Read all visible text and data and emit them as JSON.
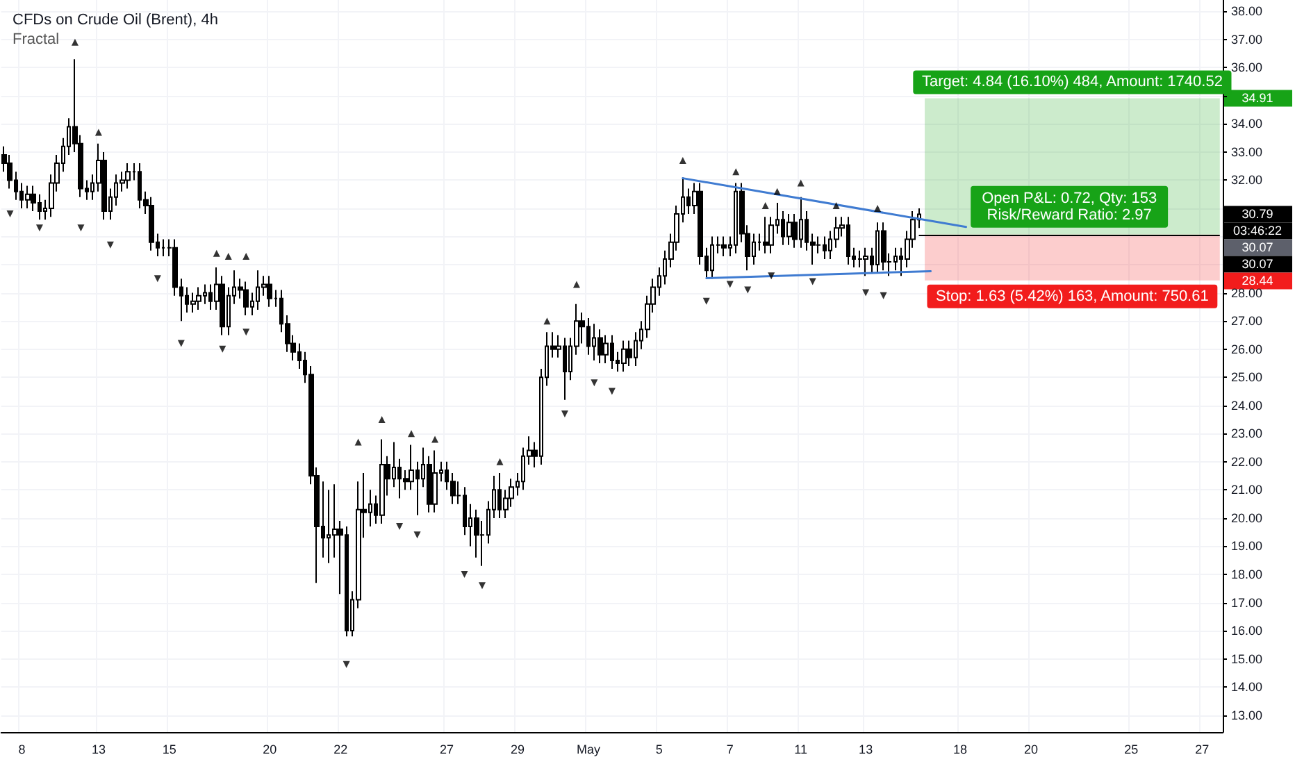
{
  "chart_data": {
    "type": "candlestick",
    "title": "CFDs on Crude Oil (Brent), 4h",
    "subtitle": "Fractal",
    "color": "#000000",
    "grid": true,
    "categories": [
      null,
      null,
      null,
      "8",
      null,
      null,
      null,
      null,
      null,
      null,
      null,
      null,
      null,
      null,
      null,
      null,
      "13",
      null,
      null,
      null,
      null,
      null,
      null,
      null,
      null,
      null,
      null,
      null,
      "15",
      null,
      null,
      null,
      null,
      null,
      null,
      null,
      null,
      null,
      null,
      null,
      null,
      null,
      null,
      null,
      null,
      "20",
      null,
      null,
      null,
      null,
      null,
      null,
      null,
      null,
      null,
      null,
      null,
      "22",
      null,
      null,
      null,
      null,
      null,
      null,
      null,
      null,
      null,
      null,
      null,
      null,
      null,
      null,
      null,
      null,
      null,
      "27",
      null,
      null,
      null,
      null,
      null,
      null,
      null,
      null,
      null,
      null,
      null,
      "29",
      null,
      null,
      null,
      null,
      null,
      null,
      null,
      null,
      null,
      null,
      null,
      "May",
      null,
      null,
      null,
      null,
      null,
      null,
      null,
      null,
      null,
      null,
      null,
      "5",
      null,
      null,
      null,
      null,
      null,
      null,
      null,
      null,
      null,
      null,
      null,
      "7",
      null,
      null,
      null,
      null,
      null,
      null,
      null,
      null,
      null,
      null,
      null,
      "11",
      null,
      null,
      null,
      null,
      null,
      null,
      null,
      null,
      null,
      null,
      "13",
      null,
      null,
      null,
      null,
      null,
      null,
      null,
      null,
      null,
      null,
      null,
      null,
      null,
      null,
      null,
      "18",
      null,
      null,
      null,
      null,
      null,
      null,
      null,
      null,
      null,
      null,
      null,
      "20",
      null,
      null,
      null,
      null,
      null,
      null,
      null,
      null,
      null,
      null,
      null,
      null,
      null,
      null,
      null,
      null,
      "25",
      null,
      null,
      null,
      null,
      null,
      null,
      null,
      null,
      null,
      null,
      null,
      "27",
      null,
      null,
      null
    ],
    "ohlc": [
      [
        32.9,
        33.2,
        32.3,
        32.6
      ],
      [
        32.6,
        32.9,
        31.7,
        32.0
      ],
      [
        32.0,
        32.3,
        31.3,
        31.6
      ],
      [
        31.6,
        31.9,
        31.0,
        31.3
      ],
      [
        31.3,
        31.8,
        31.0,
        31.5
      ],
      [
        31.5,
        31.8,
        30.9,
        31.2
      ],
      [
        31.2,
        31.5,
        30.6,
        30.9
      ],
      [
        30.9,
        31.3,
        30.6,
        31.0
      ],
      [
        31.0,
        32.2,
        30.7,
        31.9
      ],
      [
        31.9,
        32.9,
        31.6,
        32.6
      ],
      [
        32.6,
        33.5,
        32.3,
        33.2
      ],
      [
        33.2,
        34.2,
        32.9,
        33.9
      ],
      [
        33.9,
        36.3,
        33.0,
        33.3
      ],
      [
        33.3,
        33.6,
        31.4,
        31.7
      ],
      [
        31.7,
        32.0,
        31.3,
        31.6
      ],
      [
        31.6,
        32.2,
        31.3,
        31.9
      ],
      [
        31.9,
        33.3,
        31.6,
        32.7
      ],
      [
        32.7,
        33.0,
        30.6,
        30.9
      ],
      [
        30.9,
        31.7,
        30.6,
        31.4
      ],
      [
        31.4,
        32.2,
        31.1,
        31.9
      ],
      [
        31.9,
        32.3,
        31.6,
        32.0
      ],
      [
        32.0,
        32.6,
        31.7,
        32.3
      ],
      [
        32.3,
        32.6,
        32.0,
        32.3
      ],
      [
        32.3,
        32.6,
        31.0,
        31.3
      ],
      [
        31.3,
        31.6,
        30.8,
        31.1
      ],
      [
        31.1,
        31.4,
        29.5,
        29.8
      ],
      [
        29.8,
        30.1,
        29.3,
        29.6
      ],
      [
        29.6,
        29.9,
        29.3,
        29.6
      ],
      [
        29.6,
        29.9,
        29.3,
        29.6
      ],
      [
        29.6,
        29.9,
        27.9,
        28.2
      ],
      [
        28.2,
        28.5,
        27.0,
        27.9
      ],
      [
        27.9,
        28.2,
        27.3,
        27.6
      ],
      [
        27.6,
        28.0,
        27.3,
        27.7
      ],
      [
        27.7,
        28.2,
        27.4,
        27.9
      ],
      [
        27.9,
        28.3,
        27.6,
        28.0
      ],
      [
        28.0,
        28.3,
        27.4,
        27.7
      ],
      [
        27.7,
        28.9,
        27.4,
        28.3
      ],
      [
        28.3,
        28.6,
        26.5,
        26.8
      ],
      [
        26.8,
        28.2,
        26.5,
        27.9
      ],
      [
        27.9,
        28.8,
        27.6,
        28.2
      ],
      [
        28.2,
        28.5,
        27.8,
        28.1
      ],
      [
        28.1,
        28.4,
        27.2,
        27.5
      ],
      [
        27.5,
        28.0,
        27.2,
        27.7
      ],
      [
        27.7,
        28.8,
        27.4,
        28.2
      ],
      [
        28.2,
        28.6,
        27.9,
        28.3
      ],
      [
        28.3,
        28.6,
        27.5,
        27.8
      ],
      [
        27.8,
        28.1,
        27.5,
        27.8
      ],
      [
        27.8,
        28.1,
        26.6,
        26.9
      ],
      [
        26.9,
        27.2,
        25.9,
        26.2
      ],
      [
        26.2,
        26.5,
        25.6,
        25.9
      ],
      [
        25.9,
        26.2,
        25.3,
        25.6
      ],
      [
        25.6,
        25.9,
        24.8,
        25.1
      ],
      [
        25.1,
        25.4,
        21.2,
        21.5
      ],
      [
        21.5,
        21.8,
        17.7,
        19.7
      ],
      [
        19.7,
        21.3,
        18.6,
        19.3
      ],
      [
        19.3,
        21.0,
        18.4,
        19.4
      ],
      [
        19.4,
        21.2,
        18.6,
        19.6
      ],
      [
        19.6,
        19.9,
        17.3,
        19.4
      ],
      [
        19.4,
        19.7,
        15.8,
        16.0
      ],
      [
        16.0,
        17.4,
        15.8,
        17.1
      ],
      [
        17.1,
        21.3,
        16.8,
        20.3
      ],
      [
        20.3,
        21.6,
        19.3,
        20.2
      ],
      [
        20.2,
        21.0,
        19.7,
        20.5
      ],
      [
        20.5,
        20.8,
        19.8,
        20.1
      ],
      [
        20.1,
        22.8,
        19.8,
        21.9
      ],
      [
        21.9,
        22.2,
        20.8,
        21.4
      ],
      [
        21.4,
        22.7,
        21.1,
        21.8
      ],
      [
        21.8,
        22.1,
        20.7,
        21.4
      ],
      [
        21.4,
        21.7,
        21.0,
        21.3
      ],
      [
        21.3,
        22.6,
        21.0,
        21.7
      ],
      [
        21.7,
        22.0,
        20.1,
        21.4
      ],
      [
        21.4,
        22.5,
        21.1,
        21.9
      ],
      [
        21.9,
        22.2,
        20.2,
        20.5
      ],
      [
        20.5,
        22.4,
        20.2,
        21.6
      ],
      [
        21.6,
        22.0,
        21.3,
        21.7
      ],
      [
        21.7,
        22.0,
        21.0,
        21.3
      ],
      [
        21.3,
        21.6,
        20.5,
        20.8
      ],
      [
        20.8,
        21.3,
        20.5,
        20.8
      ],
      [
        20.8,
        21.1,
        19.4,
        19.7
      ],
      [
        19.7,
        20.5,
        19.0,
        20.0
      ],
      [
        20.0,
        20.3,
        18.6,
        19.4
      ],
      [
        19.4,
        19.9,
        18.3,
        19.4
      ],
      [
        19.4,
        20.6,
        19.1,
        20.3
      ],
      [
        20.3,
        21.5,
        20.0,
        21.0
      ],
      [
        21.0,
        21.6,
        20.0,
        20.3
      ],
      [
        20.3,
        21.0,
        20.0,
        20.7
      ],
      [
        20.7,
        21.4,
        20.4,
        21.1
      ],
      [
        21.1,
        21.6,
        20.8,
        21.3
      ],
      [
        21.3,
        22.5,
        21.0,
        22.2
      ],
      [
        22.2,
        22.9,
        21.9,
        22.4
      ],
      [
        22.4,
        22.7,
        21.8,
        22.2
      ],
      [
        22.2,
        25.3,
        21.9,
        25.0
      ],
      [
        25.0,
        26.6,
        24.7,
        26.1
      ],
      [
        26.1,
        26.6,
        25.7,
        26.0
      ],
      [
        26.0,
        26.5,
        25.7,
        26.1
      ],
      [
        26.1,
        26.4,
        24.2,
        25.2
      ],
      [
        25.2,
        26.4,
        24.9,
        26.1
      ],
      [
        26.1,
        27.6,
        25.8,
        27.0
      ],
      [
        27.0,
        27.3,
        26.2,
        26.8
      ],
      [
        26.8,
        27.1,
        25.8,
        26.1
      ],
      [
        26.1,
        26.9,
        25.6,
        26.4
      ],
      [
        26.4,
        26.7,
        25.5,
        25.8
      ],
      [
        25.8,
        26.5,
        25.5,
        26.2
      ],
      [
        26.2,
        26.5,
        25.3,
        25.6
      ],
      [
        25.6,
        25.9,
        25.2,
        25.5
      ],
      [
        25.5,
        26.3,
        25.2,
        26.0
      ],
      [
        26.0,
        26.3,
        25.4,
        25.7
      ],
      [
        25.7,
        26.6,
        25.4,
        26.3
      ],
      [
        26.3,
        27.0,
        26.0,
        26.7
      ],
      [
        26.7,
        27.9,
        26.4,
        27.6
      ],
      [
        27.6,
        28.5,
        27.3,
        28.2
      ],
      [
        28.2,
        28.9,
        27.9,
        28.6
      ],
      [
        28.6,
        29.5,
        28.3,
        29.2
      ],
      [
        29.2,
        30.1,
        28.9,
        29.8
      ],
      [
        29.8,
        31.1,
        29.5,
        30.8
      ],
      [
        30.8,
        32.1,
        30.5,
        31.4
      ],
      [
        31.4,
        31.7,
        30.8,
        31.1
      ],
      [
        31.1,
        31.9,
        30.8,
        31.6
      ],
      [
        31.6,
        31.9,
        29.0,
        29.3
      ],
      [
        29.3,
        29.6,
        28.5,
        28.8
      ],
      [
        28.8,
        30.0,
        28.5,
        29.7
      ],
      [
        29.7,
        30.0,
        29.4,
        29.7
      ],
      [
        29.7,
        30.0,
        29.3,
        29.6
      ],
      [
        29.6,
        30.0,
        29.3,
        29.7
      ],
      [
        29.7,
        31.9,
        29.4,
        31.6
      ],
      [
        31.6,
        31.9,
        29.8,
        30.1
      ],
      [
        30.1,
        30.4,
        28.8,
        29.3
      ],
      [
        29.3,
        30.1,
        29.0,
        29.8
      ],
      [
        29.8,
        30.1,
        29.5,
        29.8
      ],
      [
        29.8,
        30.7,
        29.4,
        29.7
      ],
      [
        29.7,
        30.7,
        29.4,
        30.4
      ],
      [
        30.4,
        31.2,
        30.1,
        30.6
      ],
      [
        30.6,
        30.9,
        29.7,
        30.0
      ],
      [
        30.0,
        30.8,
        29.7,
        30.5
      ],
      [
        30.5,
        30.8,
        29.6,
        29.9
      ],
      [
        29.9,
        31.4,
        29.6,
        30.6
      ],
      [
        30.6,
        30.9,
        29.5,
        29.8
      ],
      [
        29.8,
        30.1,
        29.0,
        29.7
      ],
      [
        29.7,
        30.0,
        29.4,
        29.7
      ],
      [
        29.7,
        30.0,
        29.2,
        29.5
      ],
      [
        29.5,
        30.2,
        29.2,
        29.9
      ],
      [
        29.9,
        30.7,
        29.6,
        30.3
      ],
      [
        30.3,
        30.7,
        30.0,
        30.4
      ],
      [
        30.4,
        30.7,
        29.0,
        29.3
      ],
      [
        29.3,
        29.6,
        28.9,
        29.2
      ],
      [
        29.2,
        29.5,
        28.9,
        29.2
      ],
      [
        29.2,
        29.6,
        28.6,
        29.3
      ],
      [
        29.3,
        29.6,
        28.7,
        29.0
      ],
      [
        29.0,
        30.5,
        28.7,
        30.2
      ],
      [
        30.2,
        30.5,
        28.8,
        29.1
      ],
      [
        29.1,
        29.4,
        28.6,
        29.1
      ],
      [
        29.1,
        29.6,
        28.8,
        29.3
      ],
      [
        29.3,
        29.6,
        28.6,
        29.2
      ],
      [
        29.2,
        30.2,
        28.9,
        29.9
      ],
      [
        29.9,
        30.9,
        29.6,
        30.6
      ],
      [
        30.6,
        31.0,
        30.3,
        30.79
      ],
      null,
      null,
      null,
      null,
      null,
      null,
      null,
      null,
      null,
      null,
      null,
      null,
      null,
      null,
      null,
      null,
      null,
      null,
      null,
      null,
      null,
      null,
      null,
      null,
      null,
      null,
      null,
      null,
      null,
      null,
      null,
      null,
      null,
      null,
      null,
      null,
      null,
      null,
      null,
      null,
      null,
      null,
      null,
      null,
      null,
      null,
      null,
      null,
      null,
      null,
      null
    ],
    "series": [
      {
        "type": "line",
        "color": "#3f7bd1",
        "marker": "none",
        "values": [
          null,
          null,
          null,
          null,
          null,
          null,
          null,
          null,
          null,
          null,
          null,
          null,
          null,
          null,
          null,
          null,
          null,
          null,
          null,
          null,
          null,
          null,
          null,
          null,
          null,
          null,
          null,
          null,
          null,
          null,
          null,
          null,
          null,
          null,
          null,
          null,
          null,
          null,
          null,
          null,
          null,
          null,
          null,
          null,
          null,
          null,
          null,
          null,
          null,
          null,
          null,
          null,
          null,
          null,
          null,
          null,
          null,
          null,
          null,
          null,
          null,
          null,
          null,
          null,
          null,
          null,
          null,
          null,
          null,
          null,
          null,
          null,
          null,
          null,
          null,
          null,
          null,
          null,
          null,
          null,
          null,
          null,
          null,
          null,
          null,
          null,
          null,
          null,
          null,
          null,
          null,
          null,
          null,
          null,
          null,
          null,
          null,
          null,
          null,
          null,
          null,
          null,
          null,
          null,
          null,
          null,
          null,
          null,
          null,
          null,
          null,
          null,
          null,
          null,
          null,
          32.07,
          null,
          null,
          null,
          null,
          null,
          null,
          null,
          null,
          null,
          null,
          null,
          null,
          null,
          null,
          null,
          null,
          null,
          null,
          null,
          null,
          null,
          null,
          null,
          null,
          null,
          null,
          null,
          null,
          null,
          null,
          null,
          null,
          null,
          null,
          null,
          null,
          null,
          null,
          null,
          null,
          null,
          null,
          null,
          null,
          null,
          null,
          null,
          30.34,
          null,
          null,
          null,
          null,
          null,
          null,
          null,
          null,
          null,
          null,
          null,
          null,
          null,
          null,
          null,
          null,
          null,
          null,
          null,
          null,
          null,
          null,
          null,
          null,
          null,
          null,
          null,
          null,
          null,
          null,
          null,
          null,
          null,
          null,
          null,
          null,
          null,
          null,
          null,
          null,
          null,
          null,
          null
        ]
      },
      {
        "type": "line",
        "color": "#3f7bd1",
        "marker": "none",
        "values": [
          null,
          null,
          null,
          null,
          null,
          null,
          null,
          null,
          null,
          null,
          null,
          null,
          null,
          null,
          null,
          null,
          null,
          null,
          null,
          null,
          null,
          null,
          null,
          null,
          null,
          null,
          null,
          null,
          null,
          null,
          null,
          null,
          null,
          null,
          null,
          null,
          null,
          null,
          null,
          null,
          null,
          null,
          null,
          null,
          null,
          null,
          null,
          null,
          null,
          null,
          null,
          null,
          null,
          null,
          null,
          null,
          null,
          null,
          null,
          null,
          null,
          null,
          null,
          null,
          null,
          null,
          null,
          null,
          null,
          null,
          null,
          null,
          null,
          null,
          null,
          null,
          null,
          null,
          null,
          null,
          null,
          null,
          null,
          null,
          null,
          null,
          null,
          null,
          null,
          null,
          null,
          null,
          null,
          null,
          null,
          null,
          null,
          null,
          null,
          null,
          null,
          null,
          null,
          null,
          null,
          null,
          null,
          null,
          null,
          null,
          null,
          null,
          null,
          null,
          null,
          null,
          null,
          null,
          null,
          28.52,
          null,
          null,
          null,
          null,
          null,
          null,
          null,
          null,
          null,
          null,
          null,
          null,
          null,
          null,
          null,
          null,
          null,
          null,
          null,
          null,
          null,
          null,
          null,
          null,
          null,
          null,
          null,
          null,
          null,
          null,
          null,
          null,
          null,
          null,
          null,
          null,
          null,
          28.77,
          null,
          null,
          null,
          null,
          null,
          null,
          null,
          null,
          null,
          null,
          null,
          null,
          null,
          null,
          null,
          null,
          null,
          null,
          null,
          null,
          null,
          null,
          null,
          null,
          null,
          null,
          null,
          null,
          null,
          null,
          null,
          null,
          null,
          null,
          null,
          null,
          null,
          null,
          null,
          null,
          null,
          null,
          null,
          null,
          null,
          null,
          null,
          null,
          null
        ]
      },
      {
        "type": "scatter",
        "color": "#000000",
        "marker": "triangle",
        "values": [
          null,
          null,
          null,
          null,
          null,
          null,
          null,
          null,
          null,
          null,
          null,
          null,
          36.9,
          null,
          null,
          null,
          33.7,
          null,
          null,
          null,
          null,
          null,
          null,
          null,
          null,
          null,
          null,
          null,
          null,
          null,
          null,
          null,
          null,
          null,
          null,
          null,
          29.4,
          null,
          29.3,
          null,
          null,
          29.3,
          null,
          null,
          null,
          null,
          null,
          null,
          null,
          null,
          null,
          null,
          null,
          null,
          null,
          null,
          null,
          null,
          null,
          null,
          22.7,
          null,
          null,
          null,
          23.5,
          null,
          null,
          null,
          null,
          23.0,
          null,
          null,
          null,
          22.8,
          null,
          null,
          null,
          null,
          null,
          null,
          null,
          null,
          null,
          null,
          22.0,
          null,
          null,
          null,
          null,
          null,
          null,
          null,
          27.0,
          null,
          null,
          null,
          null,
          28.3,
          null,
          null,
          null,
          null,
          null,
          null,
          null,
          null,
          null,
          null,
          null,
          null,
          null,
          null,
          null,
          null,
          null,
          32.7,
          null,
          null,
          null,
          null,
          null,
          null,
          null,
          null,
          32.3,
          null,
          null,
          null,
          null,
          31.1,
          null,
          31.6,
          null,
          null,
          null,
          31.9,
          null,
          null,
          null,
          null,
          null,
          31.1,
          null,
          null,
          null,
          null,
          null,
          null,
          31.0,
          null,
          null,
          null,
          null,
          null,
          null,
          null,
          null,
          null,
          null,
          null,
          null,
          null,
          null,
          null,
          null,
          null,
          null,
          null,
          null,
          null,
          null,
          null,
          null,
          null,
          null,
          null,
          null,
          null,
          null,
          null,
          null,
          null,
          null,
          null,
          null,
          null,
          null,
          null,
          null,
          null,
          null,
          null,
          null,
          null,
          null,
          null,
          null,
          null,
          null,
          null,
          null,
          null,
          null,
          null,
          null,
          null,
          null
        ]
      },
      {
        "type": "scatter",
        "color": "#000000",
        "marker": "triangle",
        "values": [
          null,
          30.8,
          null,
          null,
          null,
          null,
          30.3,
          null,
          null,
          null,
          null,
          null,
          null,
          30.3,
          null,
          null,
          null,
          null,
          29.7,
          null,
          null,
          null,
          null,
          null,
          null,
          null,
          28.5,
          null,
          null,
          null,
          26.2,
          null,
          null,
          null,
          null,
          null,
          null,
          26.0,
          null,
          null,
          null,
          26.6,
          null,
          null,
          null,
          null,
          null,
          null,
          null,
          null,
          null,
          null,
          null,
          null,
          null,
          null,
          null,
          null,
          14.8,
          null,
          null,
          null,
          null,
          null,
          null,
          null,
          null,
          19.7,
          null,
          null,
          19.4,
          null,
          null,
          null,
          null,
          null,
          null,
          null,
          18.0,
          null,
          null,
          17.6,
          null,
          null,
          null,
          null,
          null,
          null,
          null,
          null,
          null,
          null,
          null,
          null,
          null,
          23.7,
          null,
          null,
          null,
          null,
          24.8,
          null,
          null,
          24.5,
          null,
          null,
          null,
          null,
          null,
          null,
          null,
          null,
          null,
          null,
          null,
          null,
          null,
          null,
          null,
          27.7,
          null,
          null,
          null,
          28.3,
          null,
          null,
          28.1,
          null,
          null,
          null,
          28.6,
          null,
          null,
          null,
          null,
          null,
          null,
          28.4,
          null,
          null,
          null,
          null,
          null,
          null,
          null,
          null,
          28.0,
          null,
          null,
          27.9,
          null,
          null,
          null,
          null,
          null,
          null,
          null,
          null,
          null,
          null,
          null,
          null,
          null,
          null,
          null,
          null,
          null,
          null,
          null,
          null,
          null,
          null,
          null,
          null,
          null,
          null,
          null,
          null,
          null,
          null,
          null,
          null,
          null,
          null,
          null,
          null,
          null,
          null,
          null,
          null,
          null,
          null,
          null,
          null,
          null,
          null,
          null,
          null,
          null,
          null,
          null,
          null,
          null,
          null,
          null,
          null,
          null
        ]
      }
    ],
    "ylim": [
      12.4,
      38.4
    ],
    "yticks": [
      {
        "value": 13,
        "label": "13.00"
      },
      {
        "value": 14,
        "label": "14.00"
      },
      {
        "value": 15,
        "label": "15.00"
      },
      {
        "value": 16,
        "label": "16.00"
      },
      {
        "value": 17,
        "label": "17.00"
      },
      {
        "value": 18,
        "label": "18.00"
      },
      {
        "value": 19,
        "label": "19.00"
      },
      {
        "value": 20,
        "label": "20.00"
      },
      {
        "value": 21,
        "label": "21.00"
      },
      {
        "value": 22,
        "label": "22.00"
      },
      {
        "value": 23,
        "label": "23.00"
      },
      {
        "value": 24,
        "label": "24.00"
      },
      {
        "value": 25,
        "label": "25.00"
      },
      {
        "value": 26,
        "label": "26.00"
      },
      {
        "value": 27,
        "label": "27.00"
      },
      {
        "value": 28,
        "label": "28.00"
      },
      {
        "value": 29,
        "label": null
      },
      {
        "value": 30,
        "label": null
      },
      {
        "value": 31,
        "label": null
      },
      {
        "value": 32,
        "label": "32.00"
      },
      {
        "value": 33,
        "label": "33.00"
      },
      {
        "value": 34,
        "label": "34.00"
      },
      {
        "value": 35,
        "label": null
      },
      {
        "value": 36,
        "label": "36.00"
      },
      {
        "value": 37,
        "label": "37.00"
      },
      {
        "value": 38,
        "label": "38.00"
      }
    ],
    "bands": [
      {
        "axis": "y",
        "from": 30.07,
        "to": 34.91,
        "label": "Target: 4.84 (16.10%) 484, Amount: 1740.52",
        "color": "#17a317"
      },
      {
        "axis": "y",
        "from": 28.44,
        "to": 30.07,
        "label": "Stop: 1.63 (5.42%) 163, Amount: 750.61",
        "color": "#f21c1c"
      }
    ],
    "ref_lines": [
      {
        "axis": "y",
        "value": 30.07,
        "color": "#000000"
      }
    ],
    "annotations": [
      "Open P&L: 0.72, Qty: 153\nRisk/Reward Ratio: 2.97",
      "34.91",
      "30.79",
      "03:46:22",
      "30.07",
      "30.07",
      "28.44"
    ]
  }
}
